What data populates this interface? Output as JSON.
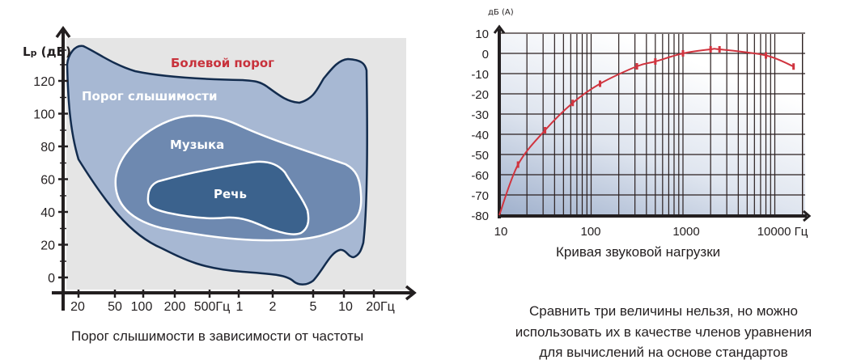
{
  "chart_data": [
    {
      "type": "area",
      "title": "Порог слышимости в зависимости от частоты",
      "ylabel": "Lp (дБ)",
      "ylabel_main": "L",
      "ylabel_sub": "p",
      "ylabel_unit": "(дБ)",
      "y_ticks": [
        "0",
        "20",
        "40",
        "60",
        "80",
        "100",
        "120"
      ],
      "x_ticks": [
        "20",
        "50",
        "100",
        "200",
        "500Гц",
        "1",
        "2",
        "5",
        "10",
        "20Гц"
      ],
      "ylim": [
        -5,
        140
      ],
      "regions": [
        {
          "name": "Болевой порог",
          "color": "#c8323c"
        },
        {
          "name": "Порог слышимости",
          "color": "#a7b8d3"
        },
        {
          "name": "Музыка",
          "color": "#6e89b0"
        },
        {
          "name": "Речь",
          "color": "#3b628d"
        }
      ],
      "background": "#e5e5e5",
      "outline_color": "#132c4e"
    },
    {
      "type": "line",
      "title": "Кривая звуковой нагрузки",
      "ylabel": "дБ (А)",
      "xlabel": "Гц",
      "x_scale": "log",
      "xlim": [
        10,
        20000
      ],
      "ylim": [
        -80,
        10
      ],
      "y_ticks": [
        "10",
        "0",
        "-10",
        "-20",
        "-30",
        "-40",
        "-50",
        "-60",
        "-70",
        "-80"
      ],
      "x_ticks": [
        "10",
        "100",
        "1000",
        "10000 Гц"
      ],
      "grid": true,
      "line_color": "#d0343f",
      "series": [
        {
          "x": [
            10,
            16,
            31.5,
            63,
            125,
            315,
            500,
            1000,
            2000,
            2500,
            8000,
            16000
          ],
          "y": [
            -80,
            -55,
            -38,
            -24.5,
            -15,
            -6.4,
            -4,
            0,
            2,
            2,
            -1,
            -6.5
          ],
          "markers": [
            false,
            true,
            true,
            true,
            true,
            true,
            true,
            true,
            true,
            true,
            true,
            true
          ]
        }
      ]
    }
  ],
  "note_text": {
    "line1": "Сравнить три величины нельзя, но можно",
    "line2": "использовать их в качестве членов уравнения",
    "line3": "для вычислений на основе стандартов"
  }
}
